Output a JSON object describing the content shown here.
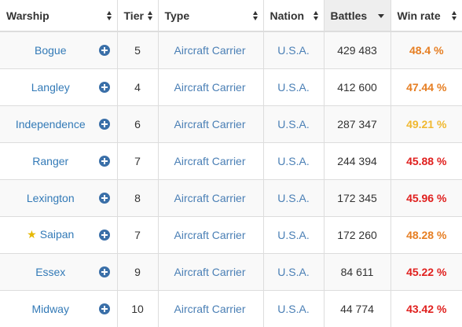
{
  "colors": {
    "link": "#337ab7",
    "winrate_orange": "#e67e22",
    "winrate_yellow": "#f0b830",
    "winrate_red": "#e0201e",
    "star": "#e6b800",
    "plus_icon": "#3a6fa8",
    "sorted_header_bg": "#eeeeee"
  },
  "headers": {
    "warship": "Warship",
    "tier": "Tier",
    "type": "Type",
    "nation": "Nation",
    "battles": "Battles",
    "winrate": "Win rate"
  },
  "rows": [
    {
      "name": "Bogue",
      "star": false,
      "tier": "5",
      "type": "Aircraft Carrier",
      "nation": "U.S.A.",
      "battles": "429 483",
      "winrate": "48.4 %",
      "winrate_level": "orange"
    },
    {
      "name": "Langley",
      "star": false,
      "tier": "4",
      "type": "Aircraft Carrier",
      "nation": "U.S.A.",
      "battles": "412 600",
      "winrate": "47.44 %",
      "winrate_level": "orange"
    },
    {
      "name": "Independence",
      "star": false,
      "tier": "6",
      "type": "Aircraft Carrier",
      "nation": "U.S.A.",
      "battles": "287 347",
      "winrate": "49.21 %",
      "winrate_level": "yellow"
    },
    {
      "name": "Ranger",
      "star": false,
      "tier": "7",
      "type": "Aircraft Carrier",
      "nation": "U.S.A.",
      "battles": "244 394",
      "winrate": "45.88 %",
      "winrate_level": "red"
    },
    {
      "name": "Lexington",
      "star": false,
      "tier": "8",
      "type": "Aircraft Carrier",
      "nation": "U.S.A.",
      "battles": "172 345",
      "winrate": "45.96 %",
      "winrate_level": "red"
    },
    {
      "name": "Saipan",
      "star": true,
      "tier": "7",
      "type": "Aircraft Carrier",
      "nation": "U.S.A.",
      "battles": "172 260",
      "winrate": "48.28 %",
      "winrate_level": "orange"
    },
    {
      "name": "Essex",
      "star": false,
      "tier": "9",
      "type": "Aircraft Carrier",
      "nation": "U.S.A.",
      "battles": "84 611",
      "winrate": "45.22 %",
      "winrate_level": "red"
    },
    {
      "name": "Midway",
      "star": false,
      "tier": "10",
      "type": "Aircraft Carrier",
      "nation": "U.S.A.",
      "battles": "44 774",
      "winrate": "43.42 %",
      "winrate_level": "red"
    }
  ]
}
